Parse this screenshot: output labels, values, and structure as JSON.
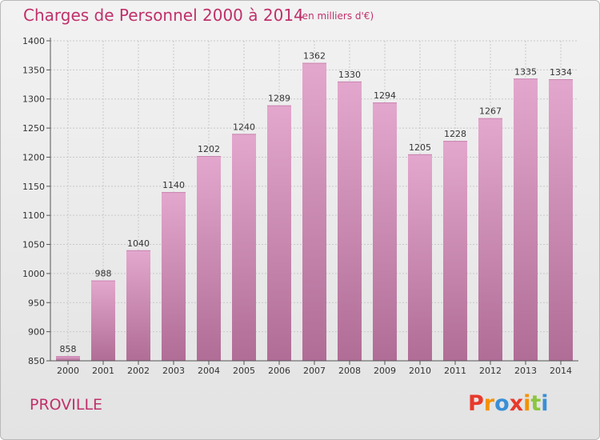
{
  "header": {
    "title": "Charges de Personnel 2000 à 2014",
    "unit": "(en milliers d'€)"
  },
  "footer": {
    "commune": "PROVILLE",
    "logo": "Proxiti",
    "logo_colors": [
      "#e8392b",
      "#f39200",
      "#3a8fd6",
      "#e8392b",
      "#f39200",
      "#8cc63f",
      "#3a8fd6"
    ]
  },
  "chart_data": {
    "type": "bar",
    "categories": [
      "2000",
      "2001",
      "2002",
      "2003",
      "2004",
      "2005",
      "2006",
      "2007",
      "2008",
      "2009",
      "2010",
      "2011",
      "2012",
      "2013",
      "2014"
    ],
    "values": [
      858,
      988,
      1040,
      1140,
      1202,
      1240,
      1289,
      1362,
      1330,
      1294,
      1205,
      1228,
      1267,
      1335,
      1334
    ],
    "data_labels": [
      "858",
      "988",
      "1040",
      "1140",
      "1202",
      "1240",
      "1289",
      "1362",
      "1330",
      "1294",
      "1205",
      "1228",
      "1267",
      "1335",
      "1334"
    ],
    "ylim": [
      850,
      1400
    ],
    "yticks": [
      850,
      900,
      950,
      1000,
      1050,
      1100,
      1150,
      1200,
      1250,
      1300,
      1350,
      1400
    ],
    "ytick_labels": [
      "850",
      "900",
      "950",
      "1000",
      "1050",
      "1100",
      "1150",
      "1200",
      "1250",
      "1300",
      "1350",
      "1400"
    ],
    "bar_color_top": "#e3a7cd",
    "bar_color_bottom": "#b06d96",
    "grid": true
  }
}
